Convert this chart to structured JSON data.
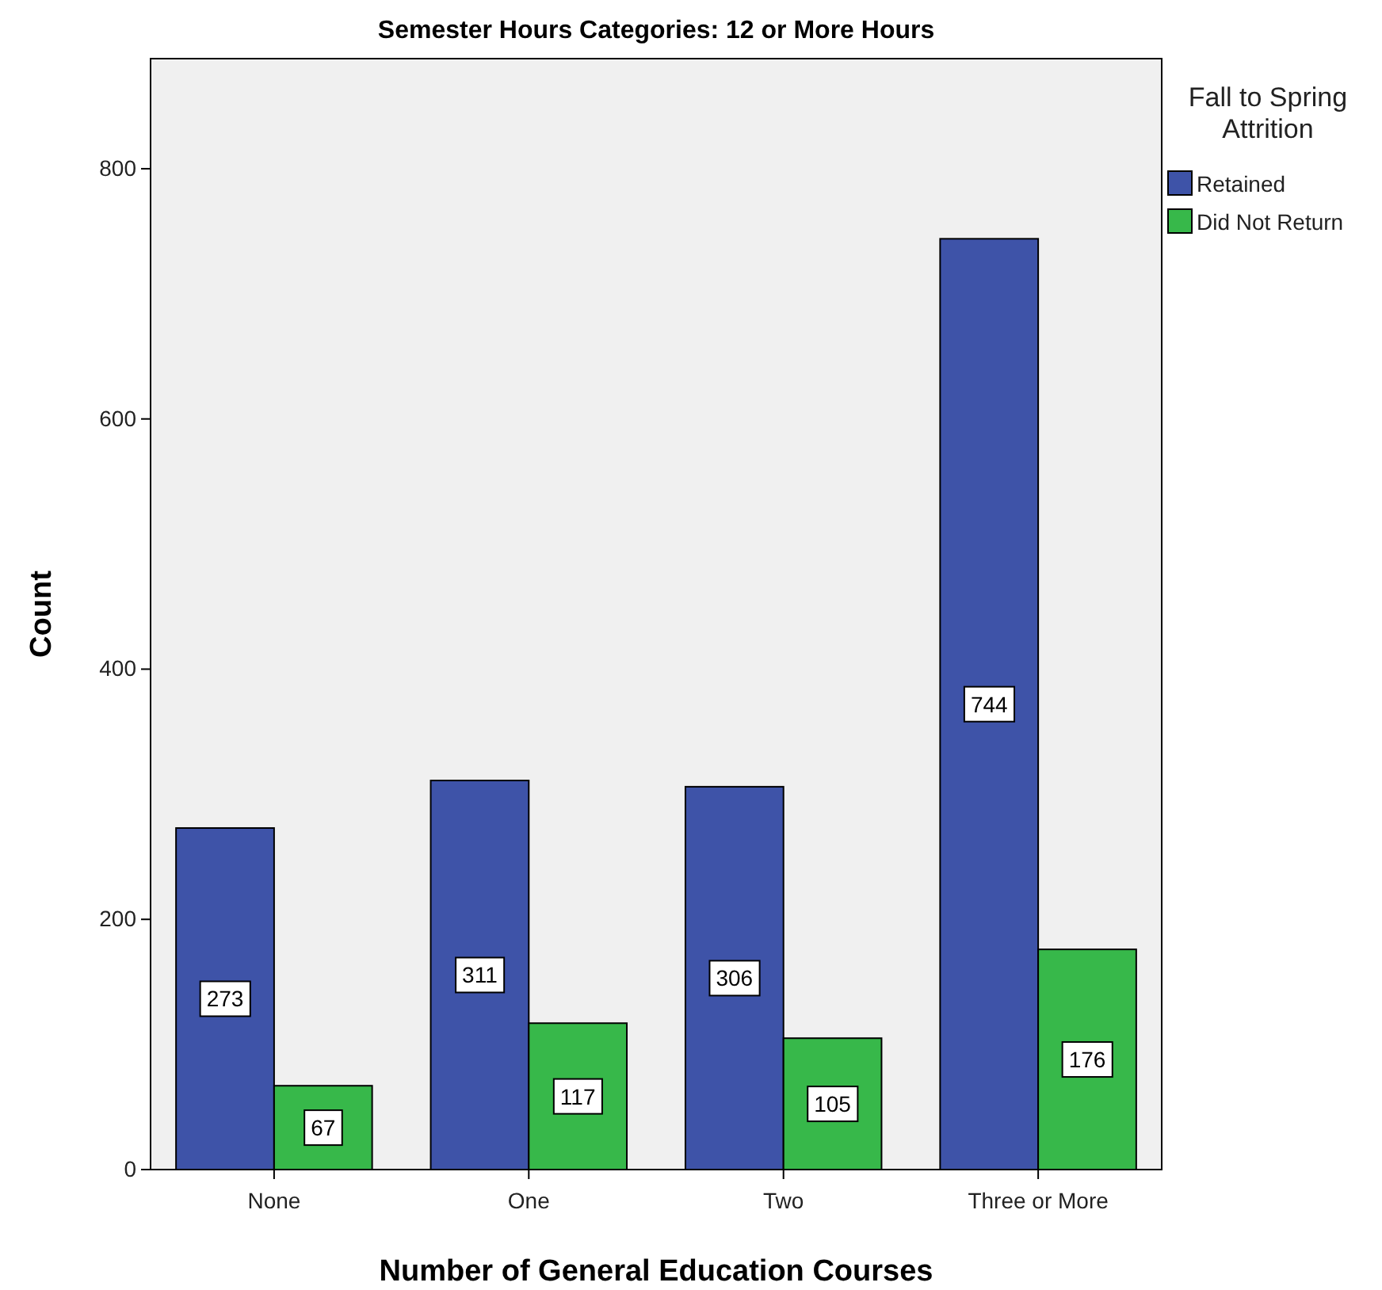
{
  "chart_data": {
    "type": "bar",
    "title": "Semester Hours Categories: 12 or More Hours",
    "xlabel": "Number of General Education Courses",
    "ylabel": "Count",
    "legend_title": "Fall to Spring Attrition",
    "categories": [
      "None",
      "One",
      "Two",
      "Three or More"
    ],
    "series": [
      {
        "name": "Retained",
        "color": "#3e53a8",
        "values": [
          273,
          311,
          306,
          744
        ]
      },
      {
        "name": "Did Not Return",
        "color": "#37b84a",
        "values": [
          67,
          117,
          105,
          176
        ]
      }
    ],
    "ylim": [
      0,
      888
    ],
    "yticks": [
      0,
      200,
      400,
      600,
      800
    ],
    "grid": false,
    "legend": "right",
    "data_labels": true
  }
}
